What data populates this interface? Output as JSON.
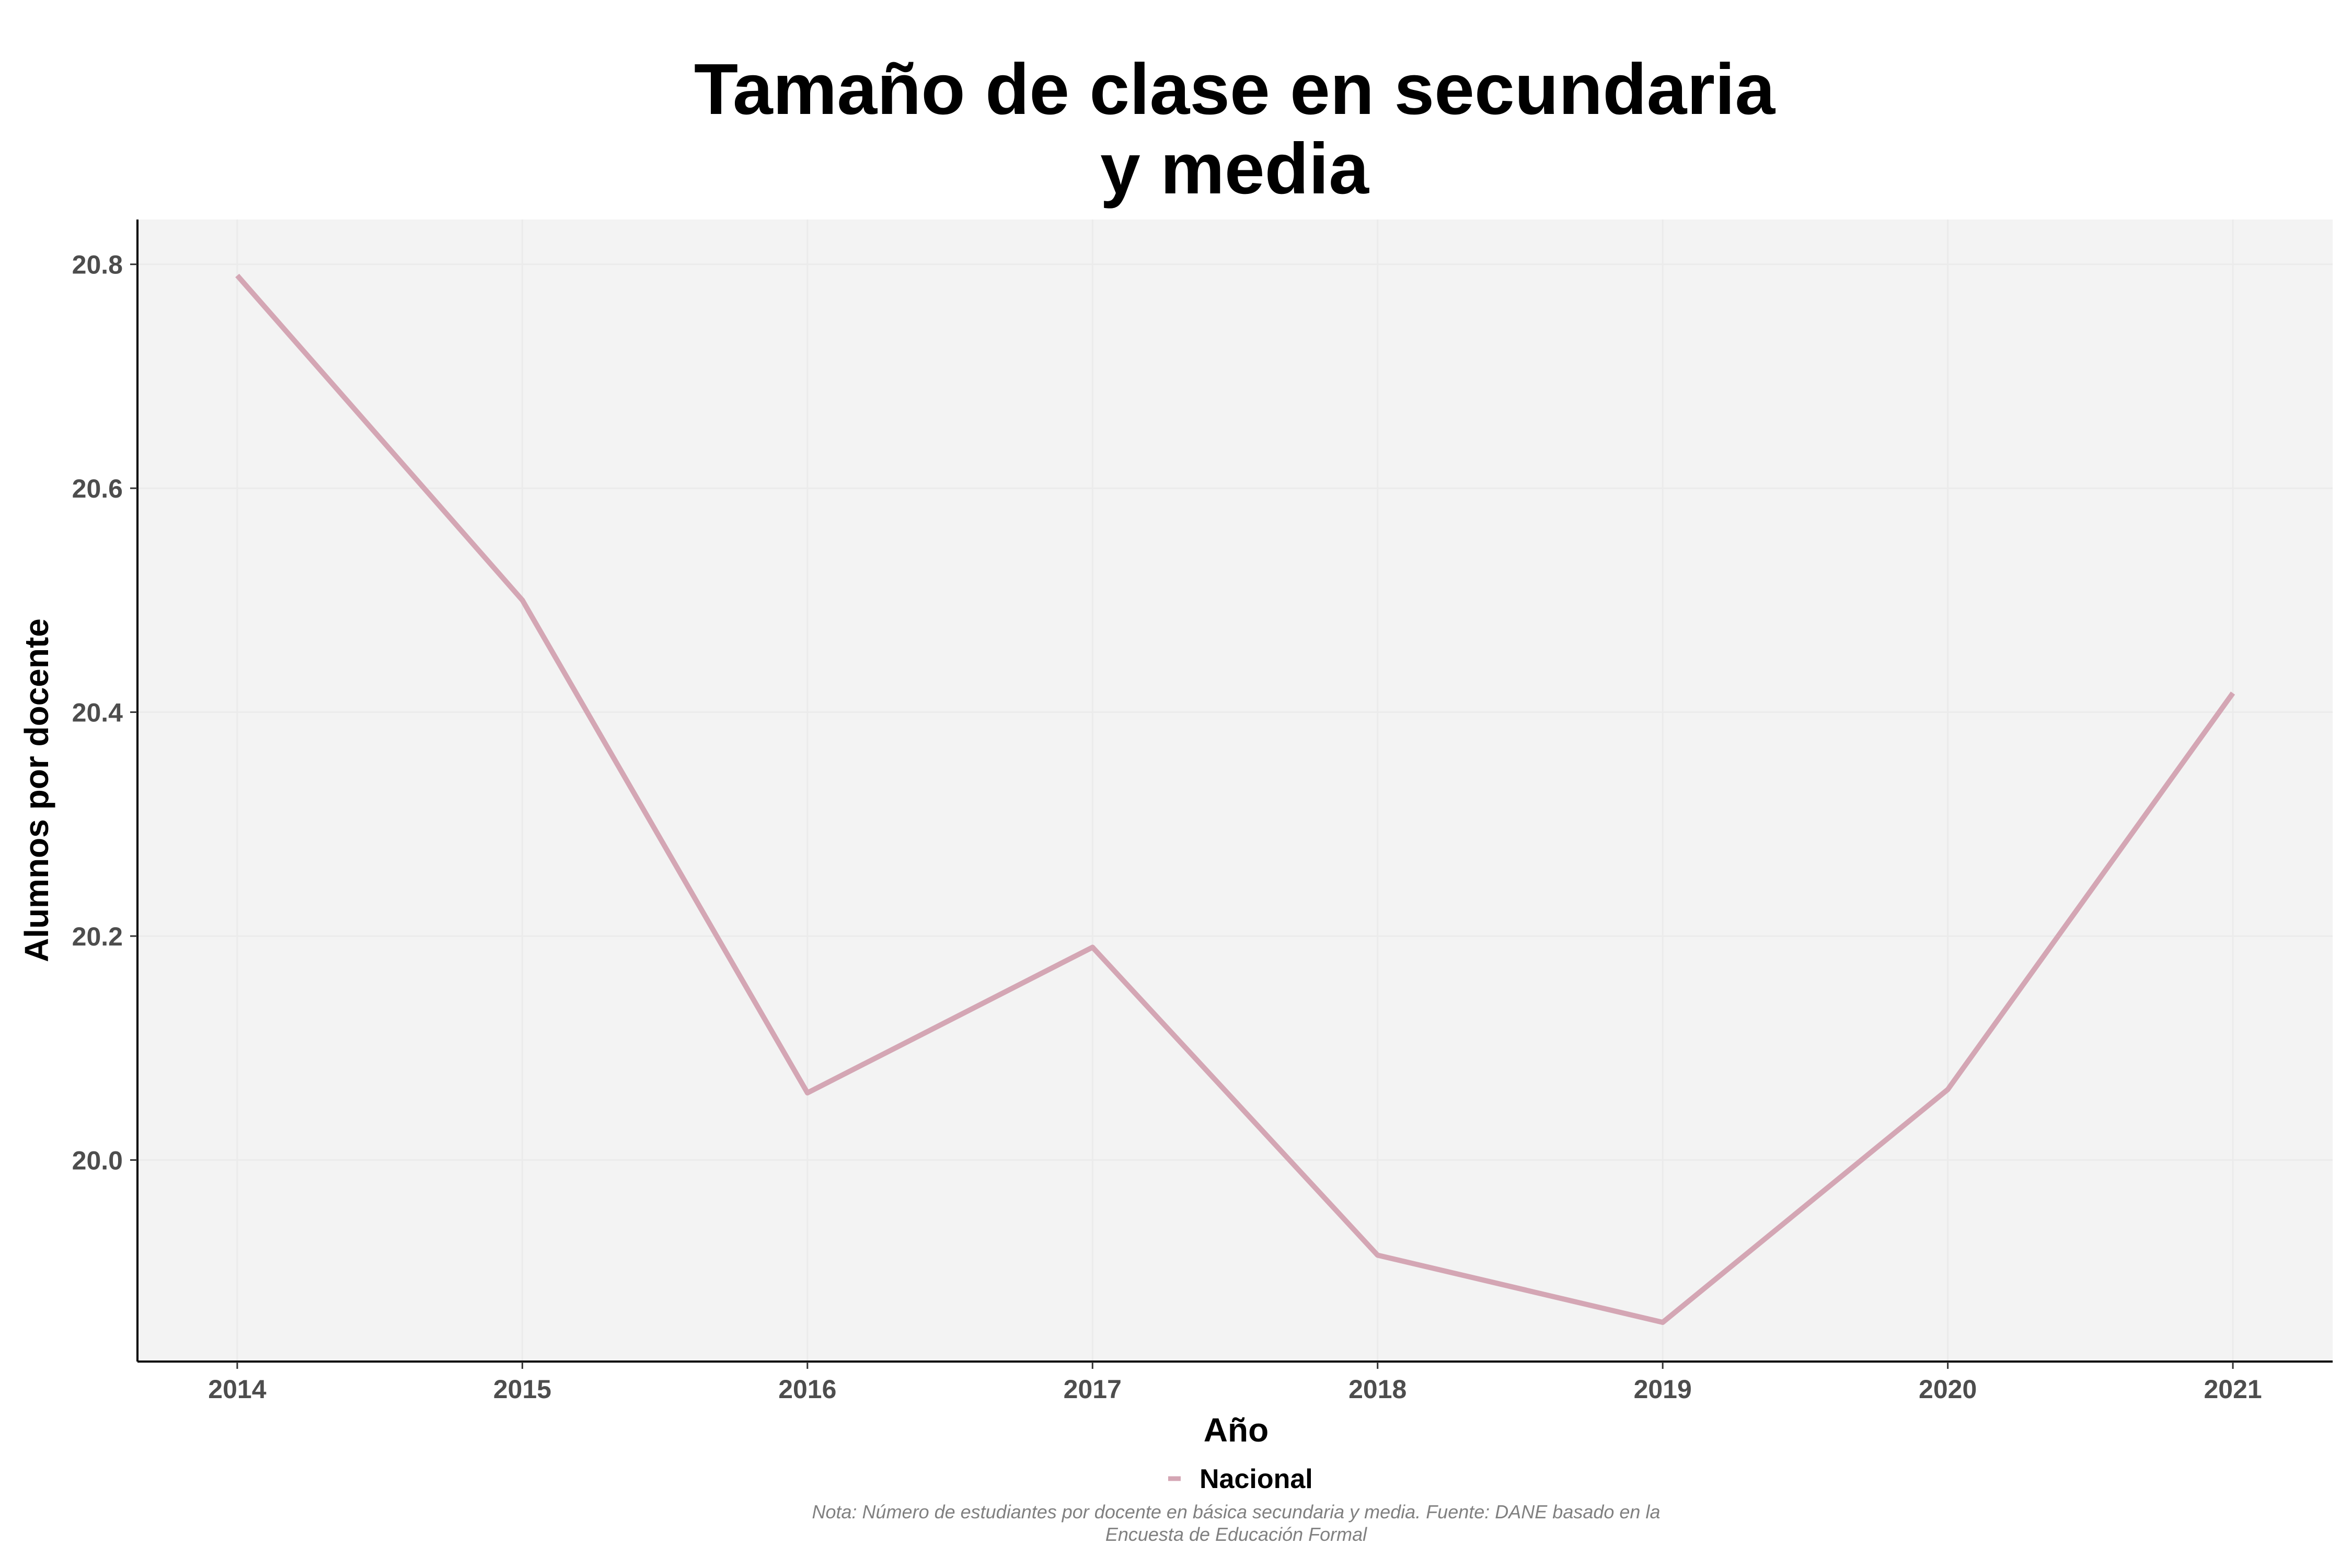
{
  "chart_data": {
    "type": "line",
    "title_lines": [
      "Tamaño de clase en secundaria",
      "y media"
    ],
    "xlabel": "Año",
    "ylabel": "Alumnos por docente",
    "x": [
      2014,
      2015,
      2016,
      2017,
      2018,
      2019,
      2020,
      2021
    ],
    "x_tick_labels": [
      "2014",
      "2015",
      "2016",
      "2017",
      "2018",
      "2019",
      "2020",
      "2021"
    ],
    "y_ticks": [
      20.0,
      20.2,
      20.4,
      20.6,
      20.8
    ],
    "y_tick_labels": [
      "20.0",
      "20.2",
      "20.4",
      "20.6",
      "20.8"
    ],
    "ylim": [
      19.82,
      20.84
    ],
    "xlim": [
      2013.65,
      2021.35
    ],
    "series": [
      {
        "name": "Nacional",
        "color": "#d4a6b4",
        "values": [
          20.79,
          20.5,
          20.06,
          20.19,
          19.915,
          19.855,
          20.063,
          20.417
        ]
      }
    ],
    "grid": true,
    "legend_position": "bottom",
    "note_lines": [
      "Nota: Número de estudiantes por docente en básica secundaria y media. Fuente: DANE basado en la",
      "Encuesta de Educación Formal"
    ],
    "colors": {
      "panel_background": "#f3f3f3",
      "gridline": "#ebebeb",
      "axis_line": "#000000",
      "tick_label": "#4d4d4d"
    }
  }
}
